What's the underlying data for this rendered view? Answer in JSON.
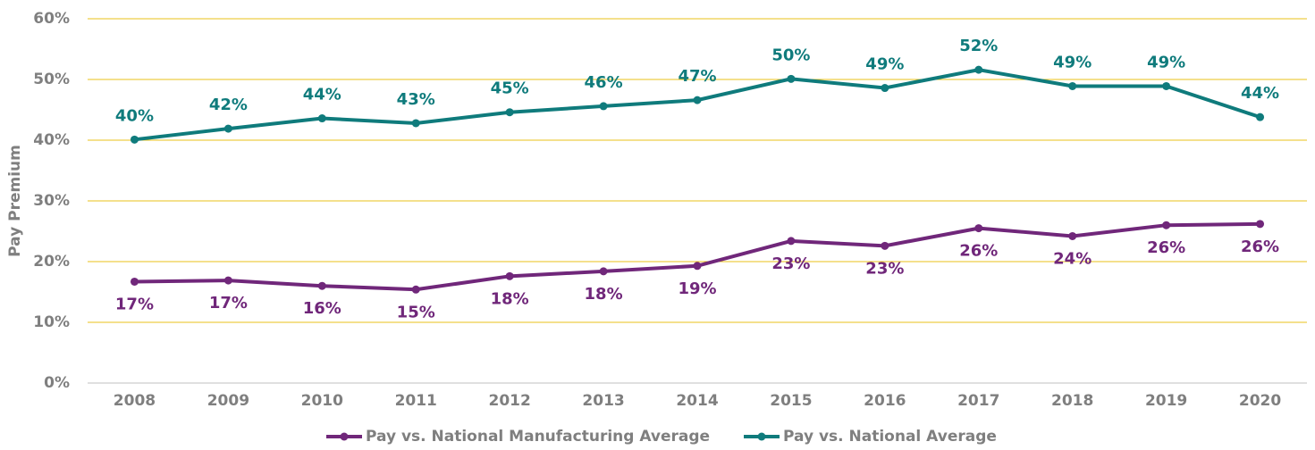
{
  "chart_data": {
    "type": "line",
    "y_axis_label": "Pay Premium",
    "categories": [
      "2008",
      "2009",
      "2010",
      "2011",
      "2012",
      "2013",
      "2014",
      "2015",
      "2016",
      "2017",
      "2018",
      "2019",
      "2020"
    ],
    "series": [
      {
        "name": "Pay vs. National Manufacturing Average",
        "color": "#70277a",
        "values": [
          16.7,
          16.9,
          16.0,
          15.4,
          17.6,
          18.4,
          19.3,
          23.4,
          22.6,
          25.5,
          24.2,
          26.0,
          26.2
        ],
        "value_labels": [
          "17%",
          "17%",
          "16%",
          "15%",
          "18%",
          "18%",
          "19%",
          "23%",
          "23%",
          "26%",
          "24%",
          "26%",
          "26%"
        ],
        "label_position": "below"
      },
      {
        "name": "Pay vs. National Average",
        "color": "#0f7b7c",
        "values": [
          40.1,
          41.9,
          43.6,
          42.8,
          44.6,
          45.6,
          46.6,
          50.1,
          48.6,
          51.6,
          48.9,
          48.9,
          43.8
        ],
        "value_labels": [
          "40%",
          "42%",
          "44%",
          "43%",
          "45%",
          "46%",
          "47%",
          "50%",
          "49%",
          "52%",
          "49%",
          "49%",
          "44%"
        ],
        "label_position": "above"
      }
    ],
    "ylim": [
      0,
      60
    ],
    "yticks": [
      {
        "value": 0,
        "label": "0%"
      },
      {
        "value": 10,
        "label": "10%"
      },
      {
        "value": 20,
        "label": "20%"
      },
      {
        "value": 30,
        "label": "30%"
      },
      {
        "value": 40,
        "label": "40%"
      },
      {
        "value": 50,
        "label": "50%"
      },
      {
        "value": 60,
        "label": "60%"
      }
    ],
    "grid": true,
    "grid_color": "#e8c21a",
    "legend": "bottom"
  }
}
